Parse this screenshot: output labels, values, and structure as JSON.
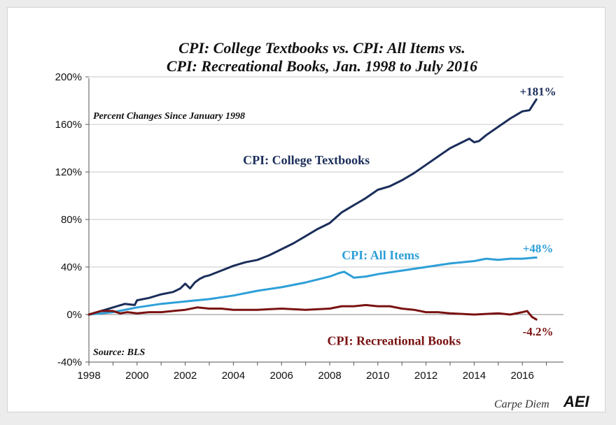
{
  "chart_data": {
    "type": "line",
    "title": [
      "CPI: College Textbooks vs. CPI: All Items vs.",
      "CPI: Recreational Books, Jan. 1998 to July 2016"
    ],
    "subtitle": "Percent Changes Since January 1998",
    "source": "Source: BLS",
    "xlabel": "",
    "ylabel": "",
    "xlim": [
      1998,
      2018
    ],
    "ylim": [
      -40,
      200
    ],
    "x_ticks": [
      1998,
      2000,
      2002,
      2004,
      2006,
      2008,
      2010,
      2012,
      2014,
      2016
    ],
    "x_tick_labels": [
      "1998",
      "2000",
      "2002",
      "2004",
      "2006",
      "2008",
      "2010",
      "2012",
      "2014",
      "2016"
    ],
    "y_ticks": [
      -40,
      0,
      40,
      80,
      120,
      160,
      200
    ],
    "y_tick_labels": [
      "-40%",
      "0%",
      "40%",
      "80%",
      "120%",
      "160%",
      "200%"
    ],
    "grid": "horizontal",
    "series": [
      {
        "name": "CPI: College Textbooks",
        "color": "#1b2e5a",
        "end_label": "+181%",
        "x": [
          1998.0,
          1998.5,
          1999.0,
          1999.5,
          1999.9,
          2000.0,
          2000.5,
          2001.0,
          2001.5,
          2001.8,
          2002.0,
          2002.2,
          2002.4,
          2002.6,
          2002.8,
          2003.0,
          2003.5,
          2004.0,
          2004.5,
          2005.0,
          2005.5,
          2006.0,
          2006.5,
          2007.0,
          2007.5,
          2008.0,
          2008.5,
          2009.0,
          2009.5,
          2010.0,
          2010.5,
          2011.0,
          2011.5,
          2012.0,
          2012.5,
          2013.0,
          2013.5,
          2013.8,
          2014.0,
          2014.2,
          2014.5,
          2015.0,
          2015.5,
          2016.0,
          2016.3,
          2016.58
        ],
        "values": [
          0,
          3,
          6,
          9,
          8,
          12,
          14,
          17,
          19,
          22,
          26,
          22,
          27,
          30,
          32,
          33,
          37,
          41,
          44,
          46,
          50,
          55,
          60,
          66,
          72,
          77,
          86,
          92,
          98,
          105,
          108,
          113,
          119,
          126,
          133,
          140,
          145,
          148,
          145,
          146,
          151,
          158,
          165,
          171,
          172,
          181
        ]
      },
      {
        "name": "CPI: All Items",
        "color": "#2e9fd8",
        "end_label": "+48%",
        "x": [
          1998.0,
          1999.0,
          2000.0,
          2001.0,
          2002.0,
          2003.0,
          2004.0,
          2005.0,
          2006.0,
          2007.0,
          2008.0,
          2008.4,
          2008.6,
          2008.85,
          2009.0,
          2009.5,
          2010.0,
          2011.0,
          2012.0,
          2013.0,
          2014.0,
          2014.5,
          2015.0,
          2015.5,
          2016.0,
          2016.58
        ],
        "values": [
          0,
          2,
          6,
          9,
          11,
          13,
          16,
          20,
          23,
          27,
          32,
          35,
          36,
          33,
          31,
          32,
          34,
          37,
          40,
          43,
          45,
          47,
          46,
          47,
          47,
          48
        ]
      },
      {
        "name": "CPI: Recreational Books",
        "color": "#7a1212",
        "end_label": "-4.2%",
        "x": [
          1998.0,
          1998.5,
          1999.0,
          1999.3,
          1999.6,
          2000.0,
          2000.5,
          2001.0,
          2001.5,
          2002.0,
          2002.5,
          2003.0,
          2003.5,
          2004.0,
          2005.0,
          2006.0,
          2007.0,
          2008.0,
          2008.5,
          2009.0,
          2009.5,
          2010.0,
          2010.5,
          2011.0,
          2011.5,
          2012.0,
          2012.5,
          2013.0,
          2014.0,
          2015.0,
          2015.5,
          2016.0,
          2016.2,
          2016.4,
          2016.58
        ],
        "values": [
          0,
          3,
          3,
          1,
          2,
          1,
          2,
          2,
          3,
          4,
          6,
          5,
          5,
          4,
          4,
          5,
          4,
          5,
          7,
          7,
          8,
          7,
          7,
          5,
          4,
          2,
          2,
          1,
          0,
          1,
          0,
          2,
          3,
          -2,
          -4.2
        ]
      }
    ],
    "line_labels": [
      "CPI: College Textbooks",
      "CPI: All Items",
      "CPI: Recreational Books"
    ]
  },
  "credit": {
    "blog_name": "Carpe Diem",
    "logo_text": "AEI"
  }
}
